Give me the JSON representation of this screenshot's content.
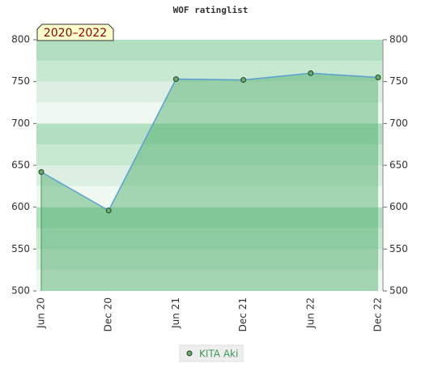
{
  "chart_data": {
    "type": "area",
    "title": "WOF ratinglist",
    "annotation": "2020–2022",
    "categories": [
      "Jun 20",
      "Dec 20",
      "Jun 21",
      "Dec 21",
      "Jun 22",
      "Dec 22"
    ],
    "series": [
      {
        "name": "KITA Aki",
        "color": "#5b9fd4",
        "values": [
          642,
          596,
          753,
          752,
          760,
          755
        ]
      }
    ],
    "ylim": [
      500,
      800
    ],
    "yticks": [
      500,
      550,
      600,
      650,
      700,
      750,
      800
    ],
    "y2lim": [
      500,
      800
    ],
    "y2ticks": [
      500,
      550,
      600,
      650,
      700,
      750,
      800
    ],
    "grid": true,
    "legend": "bottom"
  }
}
